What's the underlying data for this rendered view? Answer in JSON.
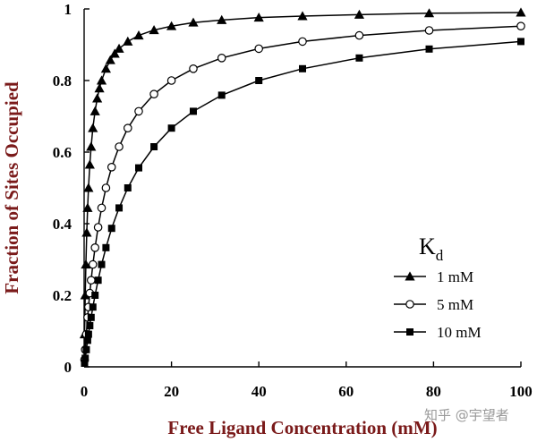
{
  "chart_data": {
    "type": "scatter",
    "xlabel": "Free Ligand Concentration (mM)",
    "ylabel": "Fraction of Sites Occupied",
    "xlim": [
      0,
      100
    ],
    "ylim": [
      0,
      1
    ],
    "x_ticks": [
      "0",
      "20",
      "40",
      "60",
      "80",
      "100"
    ],
    "y_ticks": [
      "0",
      "0.2",
      "0.4",
      "0.6",
      "0.8",
      "1"
    ],
    "grid": false,
    "legend_position": "lower-right",
    "legend_title": "K",
    "legend_title_sub": "d",
    "series": [
      {
        "name": "1 mM",
        "marker": "triangle",
        "color": "#000000",
        "x": [
          0.1,
          0.25,
          0.4,
          0.6,
          0.8,
          1.0,
          1.3,
          1.6,
          2.0,
          2.5,
          3.0,
          3.5,
          4.0,
          5.0,
          6.0,
          7.0,
          8.0,
          10,
          12.5,
          16,
          20,
          25,
          31.5,
          40,
          50,
          63,
          79,
          100
        ],
        "y": [
          0.091,
          0.2,
          0.286,
          0.375,
          0.444,
          0.5,
          0.565,
          0.615,
          0.667,
          0.714,
          0.75,
          0.778,
          0.8,
          0.833,
          0.857,
          0.875,
          0.889,
          0.909,
          0.926,
          0.941,
          0.952,
          0.962,
          0.969,
          0.976,
          0.98,
          0.984,
          0.988,
          0.99
        ],
        "fit_line": true
      },
      {
        "name": "5 mM",
        "marker": "circle-open",
        "color": "#000000",
        "x": [
          0.1,
          0.25,
          0.5,
          0.8,
          1.0,
          1.3,
          1.6,
          2.0,
          2.5,
          3.2,
          4.0,
          5.0,
          6.3,
          8.0,
          10,
          12.5,
          16,
          20,
          25,
          31.5,
          40,
          50,
          63,
          79,
          100
        ],
        "y": [
          0.02,
          0.048,
          0.091,
          0.138,
          0.167,
          0.206,
          0.242,
          0.286,
          0.333,
          0.39,
          0.444,
          0.5,
          0.558,
          0.615,
          0.667,
          0.714,
          0.762,
          0.8,
          0.833,
          0.863,
          0.889,
          0.909,
          0.926,
          0.94,
          0.952
        ],
        "fit_line": true
      },
      {
        "name": "10 mM",
        "marker": "square",
        "color": "#000000",
        "x": [
          0.1,
          0.25,
          0.5,
          0.8,
          1.0,
          1.3,
          1.6,
          2.0,
          2.5,
          3.2,
          4.0,
          5.0,
          6.3,
          8.0,
          10,
          12.5,
          16,
          20,
          25,
          31.5,
          40,
          50,
          63,
          79,
          100
        ],
        "y": [
          0.01,
          0.024,
          0.048,
          0.074,
          0.091,
          0.115,
          0.138,
          0.167,
          0.2,
          0.242,
          0.286,
          0.333,
          0.387,
          0.444,
          0.5,
          0.556,
          0.615,
          0.667,
          0.714,
          0.759,
          0.8,
          0.833,
          0.863,
          0.888,
          0.909
        ],
        "fit_line": true
      }
    ]
  },
  "watermark": "知乎 @宇望者"
}
